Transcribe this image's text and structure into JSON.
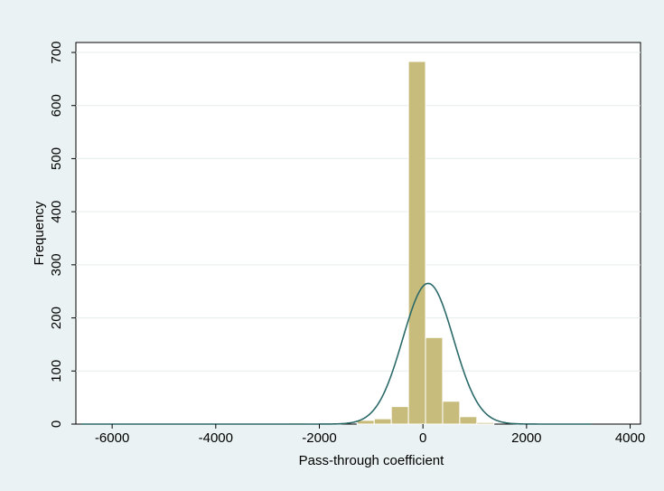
{
  "chart_data": {
    "type": "bar",
    "subtype": "histogram",
    "xlabel": "Pass-through coefficient",
    "ylabel": "Frequency",
    "xlim": [
      -6700,
      4200
    ],
    "ylim": [
      0,
      700
    ],
    "xticks": [
      -6000,
      -4000,
      -2000,
      0,
      2000,
      4000
    ],
    "xtick_labels": [
      "-6000",
      "-4000",
      "-2000",
      "0",
      "2000",
      "4000"
    ],
    "yticks": [
      0,
      100,
      200,
      300,
      400,
      500,
      600,
      700
    ],
    "ytick_labels": [
      "0",
      "100",
      "200",
      "300",
      "400",
      "500",
      "600",
      "700"
    ],
    "grid": "horizontal",
    "bin_width": 330,
    "bins": [
      {
        "x0": -2590,
        "x1": -2260,
        "value": 2
      },
      {
        "x0": -1930,
        "x1": -1600,
        "value": 1
      },
      {
        "x0": -1270,
        "x1": -940,
        "value": 7
      },
      {
        "x0": -940,
        "x1": -610,
        "value": 10
      },
      {
        "x0": -610,
        "x1": -280,
        "value": 33
      },
      {
        "x0": -280,
        "x1": 50,
        "value": 683
      },
      {
        "x0": 50,
        "x1": 380,
        "value": 163
      },
      {
        "x0": 380,
        "x1": 710,
        "value": 43
      },
      {
        "x0": 710,
        "x1": 1040,
        "value": 14
      },
      {
        "x0": 1040,
        "x1": 1370,
        "value": 3
      }
    ],
    "normal_curve": {
      "mean": 100,
      "sd": 490,
      "peak": 265,
      "x_from": -6600,
      "x_to": 3250
    },
    "colors": {
      "bar_fill": "#c8bc7c",
      "bar_stroke": "#ffffff",
      "curve": "#2c6a6a",
      "plot_bg": "#ffffff",
      "page_bg": "#eaf2f3",
      "grid": "#e6ecec"
    }
  }
}
